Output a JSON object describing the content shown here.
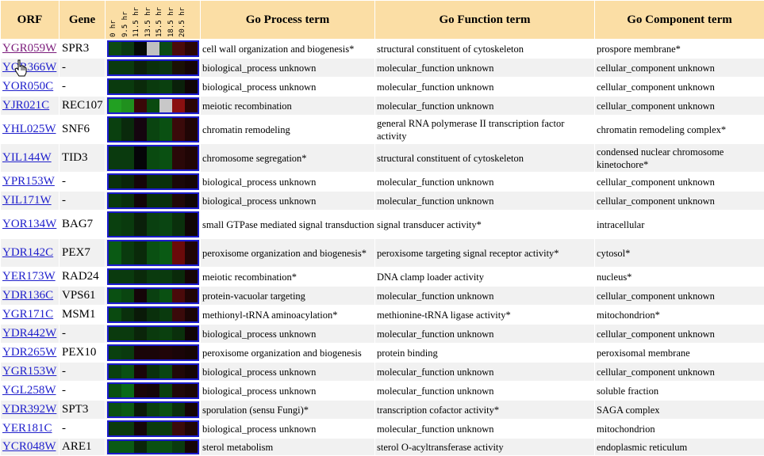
{
  "headers": {
    "orf": "ORF",
    "gene": "Gene",
    "process": "Go Process term",
    "function": "Go Function term",
    "component": "Go Component term",
    "timepoints": [
      "0 hr",
      "9.5 hr",
      "11.5 hr",
      "13.5 hr",
      "15.5 hr",
      "18.5 hr",
      "20.5 hr"
    ]
  },
  "colors": {
    "link": "#2020cc",
    "visited_link": "#7a1a7a",
    "header_bg": "#fbdea5",
    "strip_border": "#1a1acc"
  },
  "rows": [
    {
      "orf": "YGR059W",
      "gene": "SPR3",
      "process": "cell wall organization and biogenesis*",
      "function": "structural constituent of cytoskeleton",
      "component": "prospore membrane*",
      "heat": [
        "#0d4a12",
        "#0a3a10",
        "#050a05",
        "#c0c0c0",
        "#0a4a14",
        "#4a0a0a",
        "#2a0505"
      ],
      "visited": true
    },
    {
      "orf": "YOR366W",
      "gene": "-",
      "process": "biological_process unknown",
      "function": "molecular_function unknown",
      "component": "cellular_component unknown",
      "heat": [
        "#0a3a0e",
        "#0a3a0e",
        "#0c200a",
        "#0a300c",
        "#0a3510",
        "#1a1005",
        "#150505"
      ],
      "visited": false
    },
    {
      "orf": "YOR050C",
      "gene": "-",
      "process": "biological_process unknown",
      "function": "molecular_function unknown",
      "component": "cellular_component unknown",
      "heat": [
        "#0a3a0e",
        "#0a3a0e",
        "#0a2a0a",
        "#0a3a0e",
        "#0a400f",
        "#0a200a",
        "#100505"
      ],
      "visited": false
    },
    {
      "orf": "YJR021C",
      "gene": "REC107",
      "process": "meiotic recombination",
      "function": "molecular_function unknown",
      "component": "cellular_component unknown",
      "heat": [
        "#22a022",
        "#20901e",
        "#3a0808",
        "#0a4a10",
        "#c8c8c8",
        "#8a1010",
        "#2a0505"
      ],
      "visited": false
    },
    {
      "orf": "YHL025W",
      "gene": "SNF6",
      "process": "chromatin remodeling",
      "function": "general RNA polymerase II transcription factor activity",
      "component": "chromatin remodeling complex*",
      "heat": [
        "#0a400f",
        "#0a2a0c",
        "#15050f",
        "#0a4410",
        "#0a5012",
        "#3a0a0a",
        "#200505"
      ],
      "visited": false
    },
    {
      "orf": "YIL144W",
      "gene": "TID3",
      "process": "chromosome segregation*",
      "function": "structural constituent of cytoskeleton",
      "component": "condensed nuclear chromosome kinetochore*",
      "heat": [
        "#0a3a0e",
        "#0a3a0e",
        "#050508",
        "#0a4a10",
        "#0a5012",
        "#2a0808",
        "#200505"
      ],
      "visited": false
    },
    {
      "orf": "YPR153W",
      "gene": "-",
      "process": "biological_process unknown",
      "function": "molecular_function unknown",
      "component": "cellular_component unknown",
      "heat": [
        "#0a300c",
        "#0a250a",
        "#150508",
        "#0a300c",
        "#0a300c",
        "#1a0808",
        "#150505"
      ],
      "visited": false
    },
    {
      "orf": "YIL171W",
      "gene": "-",
      "process": "biological_process unknown",
      "function": "molecular_function unknown",
      "component": "cellular_component unknown",
      "heat": [
        "#0a3a0e",
        "#0a300c",
        "#120508",
        "#0a300c",
        "#0a300c",
        "#200808",
        "#100505"
      ],
      "visited": false
    },
    {
      "orf": "YOR134W",
      "gene": "BAG7",
      "process": "small GTPase mediated signal transduction",
      "function": "signal transducer activity*",
      "component": "intracellular",
      "heat": [
        "#0a400f",
        "#0a3a0e",
        "#0a200a",
        "#0a4010",
        "#0a4512",
        "#0a300c",
        "#100505"
      ],
      "visited": false
    },
    {
      "orf": "YDR142C",
      "gene": "PEX7",
      "process": "peroxisome organization and biogenesis*",
      "function": "peroxisome targeting signal receptor activity*",
      "component": "cytosol*",
      "heat": [
        "#0a5a14",
        "#0a3a0e",
        "#0a2a0a",
        "#0a5012",
        "#0a5a14",
        "#6a0a0a",
        "#200505"
      ],
      "visited": false
    },
    {
      "orf": "YER173W",
      "gene": "RAD24",
      "process": "meiotic recombination*",
      "function": "DNA clamp loader activity",
      "component": "nucleus*",
      "heat": [
        "#0a3a0e",
        "#0a3a0e",
        "#0a2a0a",
        "#0a3a0e",
        "#0a3a0e",
        "#0a2a0a",
        "#150505"
      ],
      "visited": false
    },
    {
      "orf": "YDR136C",
      "gene": "VPS61",
      "process": "protein-vacuolar targeting",
      "function": "molecular_function unknown",
      "component": "cellular_component unknown",
      "heat": [
        "#0a5012",
        "#0a4510",
        "#150508",
        "#0a4010",
        "#0a5012",
        "#4a0a0a",
        "#200505"
      ],
      "visited": false
    },
    {
      "orf": "YGR171C",
      "gene": "MSM1",
      "process": "methionyl-tRNA aminoacylation*",
      "function": "methionine-tRNA ligase activity*",
      "component": "mitochondrion*",
      "heat": [
        "#0a4a10",
        "#0a300c",
        "#0a1a08",
        "#0a300c",
        "#0a3a0e",
        "#3a0a0a",
        "#1a0505"
      ],
      "visited": false
    },
    {
      "orf": "YDR442W",
      "gene": "-",
      "process": "biological_process unknown",
      "function": "molecular_function unknown",
      "component": "cellular_component unknown",
      "heat": [
        "#0a3a0e",
        "#0a3a0e",
        "#0a250a",
        "#0a3a0e",
        "#0a400f",
        "#0a300c",
        "#100505"
      ],
      "visited": false
    },
    {
      "orf": "YDR265W",
      "gene": "PEX10",
      "process": "peroxisome organization and biogenesis",
      "function": "protein binding",
      "component": "peroxisomal membrane",
      "heat": [
        "#0a400f",
        "#0a3a0e",
        "#1a0508",
        "#1a0508",
        "#200508",
        "#1a0508",
        "#150505"
      ],
      "visited": false
    },
    {
      "orf": "YGR153W",
      "gene": "-",
      "process": "biological_process unknown",
      "function": "molecular_function unknown",
      "component": "cellular_component unknown",
      "heat": [
        "#0a400f",
        "#0a5012",
        "#1a0508",
        "#0a300c",
        "#0a4512",
        "#200808",
        "#150505"
      ],
      "visited": false
    },
    {
      "orf": "YGL258W",
      "gene": "-",
      "process": "biological_process unknown",
      "function": "molecular_function unknown",
      "component": "soluble fraction",
      "heat": [
        "#0a5012",
        "#0a6a18",
        "#1a0508",
        "#150508",
        "#0a400f",
        "#200808",
        "#1a0505"
      ],
      "visited": false
    },
    {
      "orf": "YDR392W",
      "gene": "SPT3",
      "process": "sporulation (sensu Fungi)*",
      "function": "transcription cofactor activity*",
      "component": "SAGA complex",
      "heat": [
        "#0a5012",
        "#0a5a14",
        "#0a1a08",
        "#0a4010",
        "#0a5012",
        "#0a300c",
        "#150505"
      ],
      "visited": false
    },
    {
      "orf": "YER181C",
      "gene": "-",
      "process": "biological_process unknown",
      "function": "molecular_function unknown",
      "component": "mitochondrion",
      "heat": [
        "#0a3a0e",
        "#0a3a0e",
        "#150508",
        "#0a3a0e",
        "#0a3a0e",
        "#3a0a0a",
        "#200505"
      ],
      "visited": false
    },
    {
      "orf": "YCR048W",
      "gene": "ARE1",
      "process": "sterol metabolism",
      "function": "sterol O-acyltransferase activity",
      "component": "endoplasmic reticulum",
      "heat": [
        "#0a5a14",
        "#0a5a14",
        "#0a250a",
        "#0a5012",
        "#0a5012",
        "#0a3a0e",
        "#150505"
      ],
      "visited": false
    }
  ]
}
